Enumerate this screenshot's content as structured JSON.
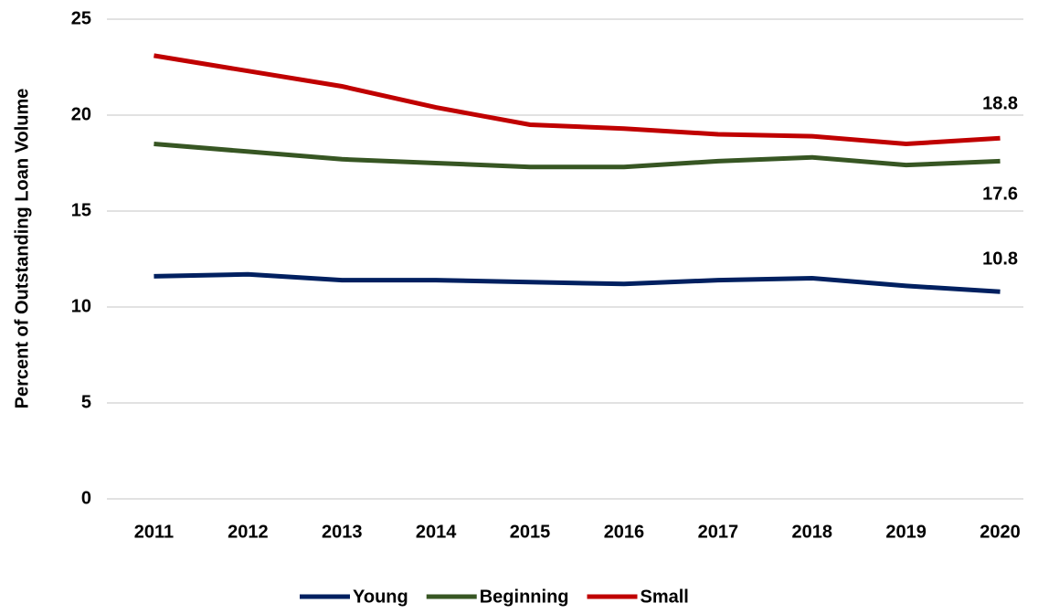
{
  "chart_data": {
    "type": "line",
    "y_label": "Percent of  Outstanding  Loan Volume",
    "categories": [
      "2011",
      "2012",
      "2013",
      "2014",
      "2015",
      "2016",
      "2017",
      "2018",
      "2019",
      "2020"
    ],
    "series": [
      {
        "name": "Young",
        "color": "#002060",
        "values": [
          11.6,
          11.7,
          11.4,
          11.4,
          11.3,
          11.2,
          11.4,
          11.5,
          11.1,
          10.8
        ]
      },
      {
        "name": "Beginning",
        "color": "#375623",
        "values": [
          18.5,
          18.1,
          17.7,
          17.5,
          17.3,
          17.3,
          17.6,
          17.8,
          17.4,
          17.6
        ]
      },
      {
        "name": "Small",
        "color": "#c00000",
        "values": [
          23.1,
          22.3,
          21.5,
          20.4,
          19.5,
          19.3,
          19.0,
          18.9,
          18.5,
          18.8
        ]
      }
    ],
    "ylim": [
      0,
      25
    ],
    "yticks": [
      0,
      5,
      10,
      15,
      20,
      25
    ],
    "grid": true,
    "legend": "bottom"
  }
}
